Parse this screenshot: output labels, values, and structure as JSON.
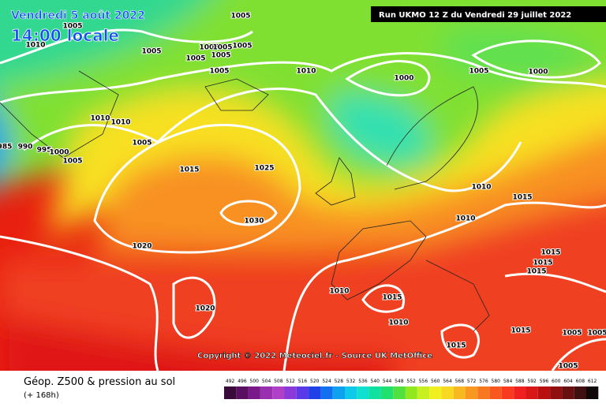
{
  "header": {
    "date": "Vendredi 5 août 2022",
    "time": "14:00 locale",
    "run": "Run UKMO 12 Z du Vendredi 29 juillet 2022"
  },
  "copyright": "Copyright © 2022 Meteociel.fr - Source UK MetOffice",
  "footer": {
    "title": "Géop. Z500 & pression au sol",
    "subtitle": "(+ 168h)"
  },
  "isobar_labels": [
    "1005",
    "1005",
    "1010",
    "1005",
    "1005",
    "1005",
    "1005",
    "1005",
    "1005",
    "1005",
    "1010",
    "1000",
    "1005",
    "1000",
    "1010",
    "1010",
    "1005",
    "985",
    "990",
    "995",
    "1000",
    "1005",
    "1015",
    "1025",
    "1030",
    "1020",
    "1020",
    "1010",
    "1015",
    "1010",
    "1015",
    "1015",
    "1015",
    "1010",
    "1015",
    "1010",
    "1015",
    "1015",
    "1005",
    "1005",
    "1005"
  ],
  "legend": [
    {
      "value": 492,
      "color": "#3a0a3a"
    },
    {
      "value": 496,
      "color": "#5a1060"
    },
    {
      "value": 500,
      "color": "#7a1a8a"
    },
    {
      "value": 504,
      "color": "#9a30b0"
    },
    {
      "value": 508,
      "color": "#b040c8"
    },
    {
      "value": 512,
      "color": "#8a3ad8"
    },
    {
      "value": 516,
      "color": "#5a3ae8"
    },
    {
      "value": 520,
      "color": "#2040e8"
    },
    {
      "value": 524,
      "color": "#1070f0"
    },
    {
      "value": 528,
      "color": "#10a0f0"
    },
    {
      "value": 532,
      "color": "#10c8e8"
    },
    {
      "value": 536,
      "color": "#10e0d0"
    },
    {
      "value": 540,
      "color": "#10e0a0"
    },
    {
      "value": 544,
      "color": "#20e070"
    },
    {
      "value": 548,
      "color": "#50e040"
    },
    {
      "value": 552,
      "color": "#90e820"
    },
    {
      "value": 556,
      "color": "#c8f020"
    },
    {
      "value": 560,
      "color": "#f0f020"
    },
    {
      "value": 564,
      "color": "#f8d820"
    },
    {
      "value": 568,
      "color": "#f8b820"
    },
    {
      "value": 572,
      "color": "#f89820"
    },
    {
      "value": 576,
      "color": "#f87820"
    },
    {
      "value": 580,
      "color": "#f85820"
    },
    {
      "value": 584,
      "color": "#f83a20"
    },
    {
      "value": 588,
      "color": "#f02020"
    },
    {
      "value": 592,
      "color": "#d81818"
    },
    {
      "value": 596,
      "color": "#b81010"
    },
    {
      "value": 600,
      "color": "#901010"
    },
    {
      "value": 604,
      "color": "#681010"
    },
    {
      "value": 608,
      "color": "#401010"
    },
    {
      "value": 612,
      "color": "#100808"
    }
  ]
}
